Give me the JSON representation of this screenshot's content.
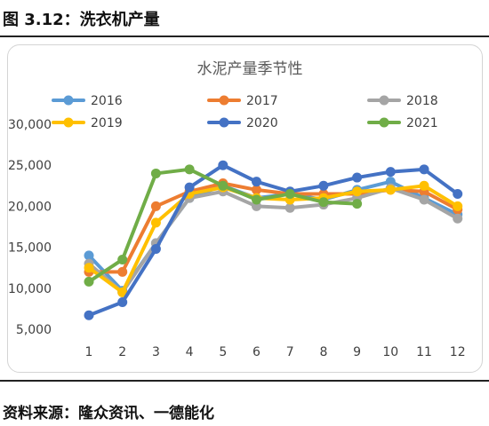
{
  "header": {
    "title": "图 3.12：洗衣机产量"
  },
  "footer": {
    "source": "资料来源：隆众资讯、一德能化"
  },
  "chart_data": {
    "type": "line",
    "title": "水泥产量季节性",
    "xlabel": "",
    "ylabel": "",
    "x": [
      1,
      2,
      3,
      4,
      5,
      6,
      7,
      8,
      9,
      10,
      11,
      12
    ],
    "x_tick_labels": [
      "1",
      "2",
      "3",
      "4",
      "5",
      "6",
      "7",
      "8",
      "9",
      "10",
      "11",
      "12"
    ],
    "ylim": [
      5000,
      30000
    ],
    "y_ticks": [
      5000,
      10000,
      15000,
      20000,
      25000,
      30000
    ],
    "y_tick_labels": [
      "5,000",
      "10,000",
      "15,000",
      "20,000",
      "25,000",
      "30,000"
    ],
    "grid": false,
    "legend_position": "top",
    "series": [
      {
        "name": "2016",
        "color": "#5b9bd5",
        "values": [
          14000,
          9700,
          15500,
          21000,
          22500,
          21000,
          21500,
          20800,
          22000,
          23000,
          21000,
          19000
        ]
      },
      {
        "name": "2017",
        "color": "#ed7d31",
        "values": [
          12000,
          12000,
          20000,
          21800,
          22800,
          22000,
          21500,
          21500,
          21500,
          22000,
          21800,
          19600
        ]
      },
      {
        "name": "2018",
        "color": "#a5a5a5",
        "values": [
          13000,
          9500,
          15500,
          21000,
          21800,
          20000,
          19800,
          20200,
          21000,
          22200,
          20800,
          18500
        ]
      },
      {
        "name": "2019",
        "color": "#ffc000",
        "values": [
          12500,
          9500,
          18000,
          21500,
          22300,
          21000,
          20800,
          21000,
          21800,
          22000,
          22500,
          20000
        ]
      },
      {
        "name": "2020",
        "color": "#4472c4",
        "values": [
          6700,
          8300,
          14800,
          22300,
          25000,
          23000,
          21800,
          22500,
          23500,
          24200,
          24500,
          21500
        ]
      },
      {
        "name": "2021",
        "color": "#70ad47",
        "values": [
          10800,
          13500,
          24000,
          24500,
          22500,
          20800,
          21500,
          20500,
          20300,
          null,
          null,
          null
        ]
      }
    ]
  }
}
